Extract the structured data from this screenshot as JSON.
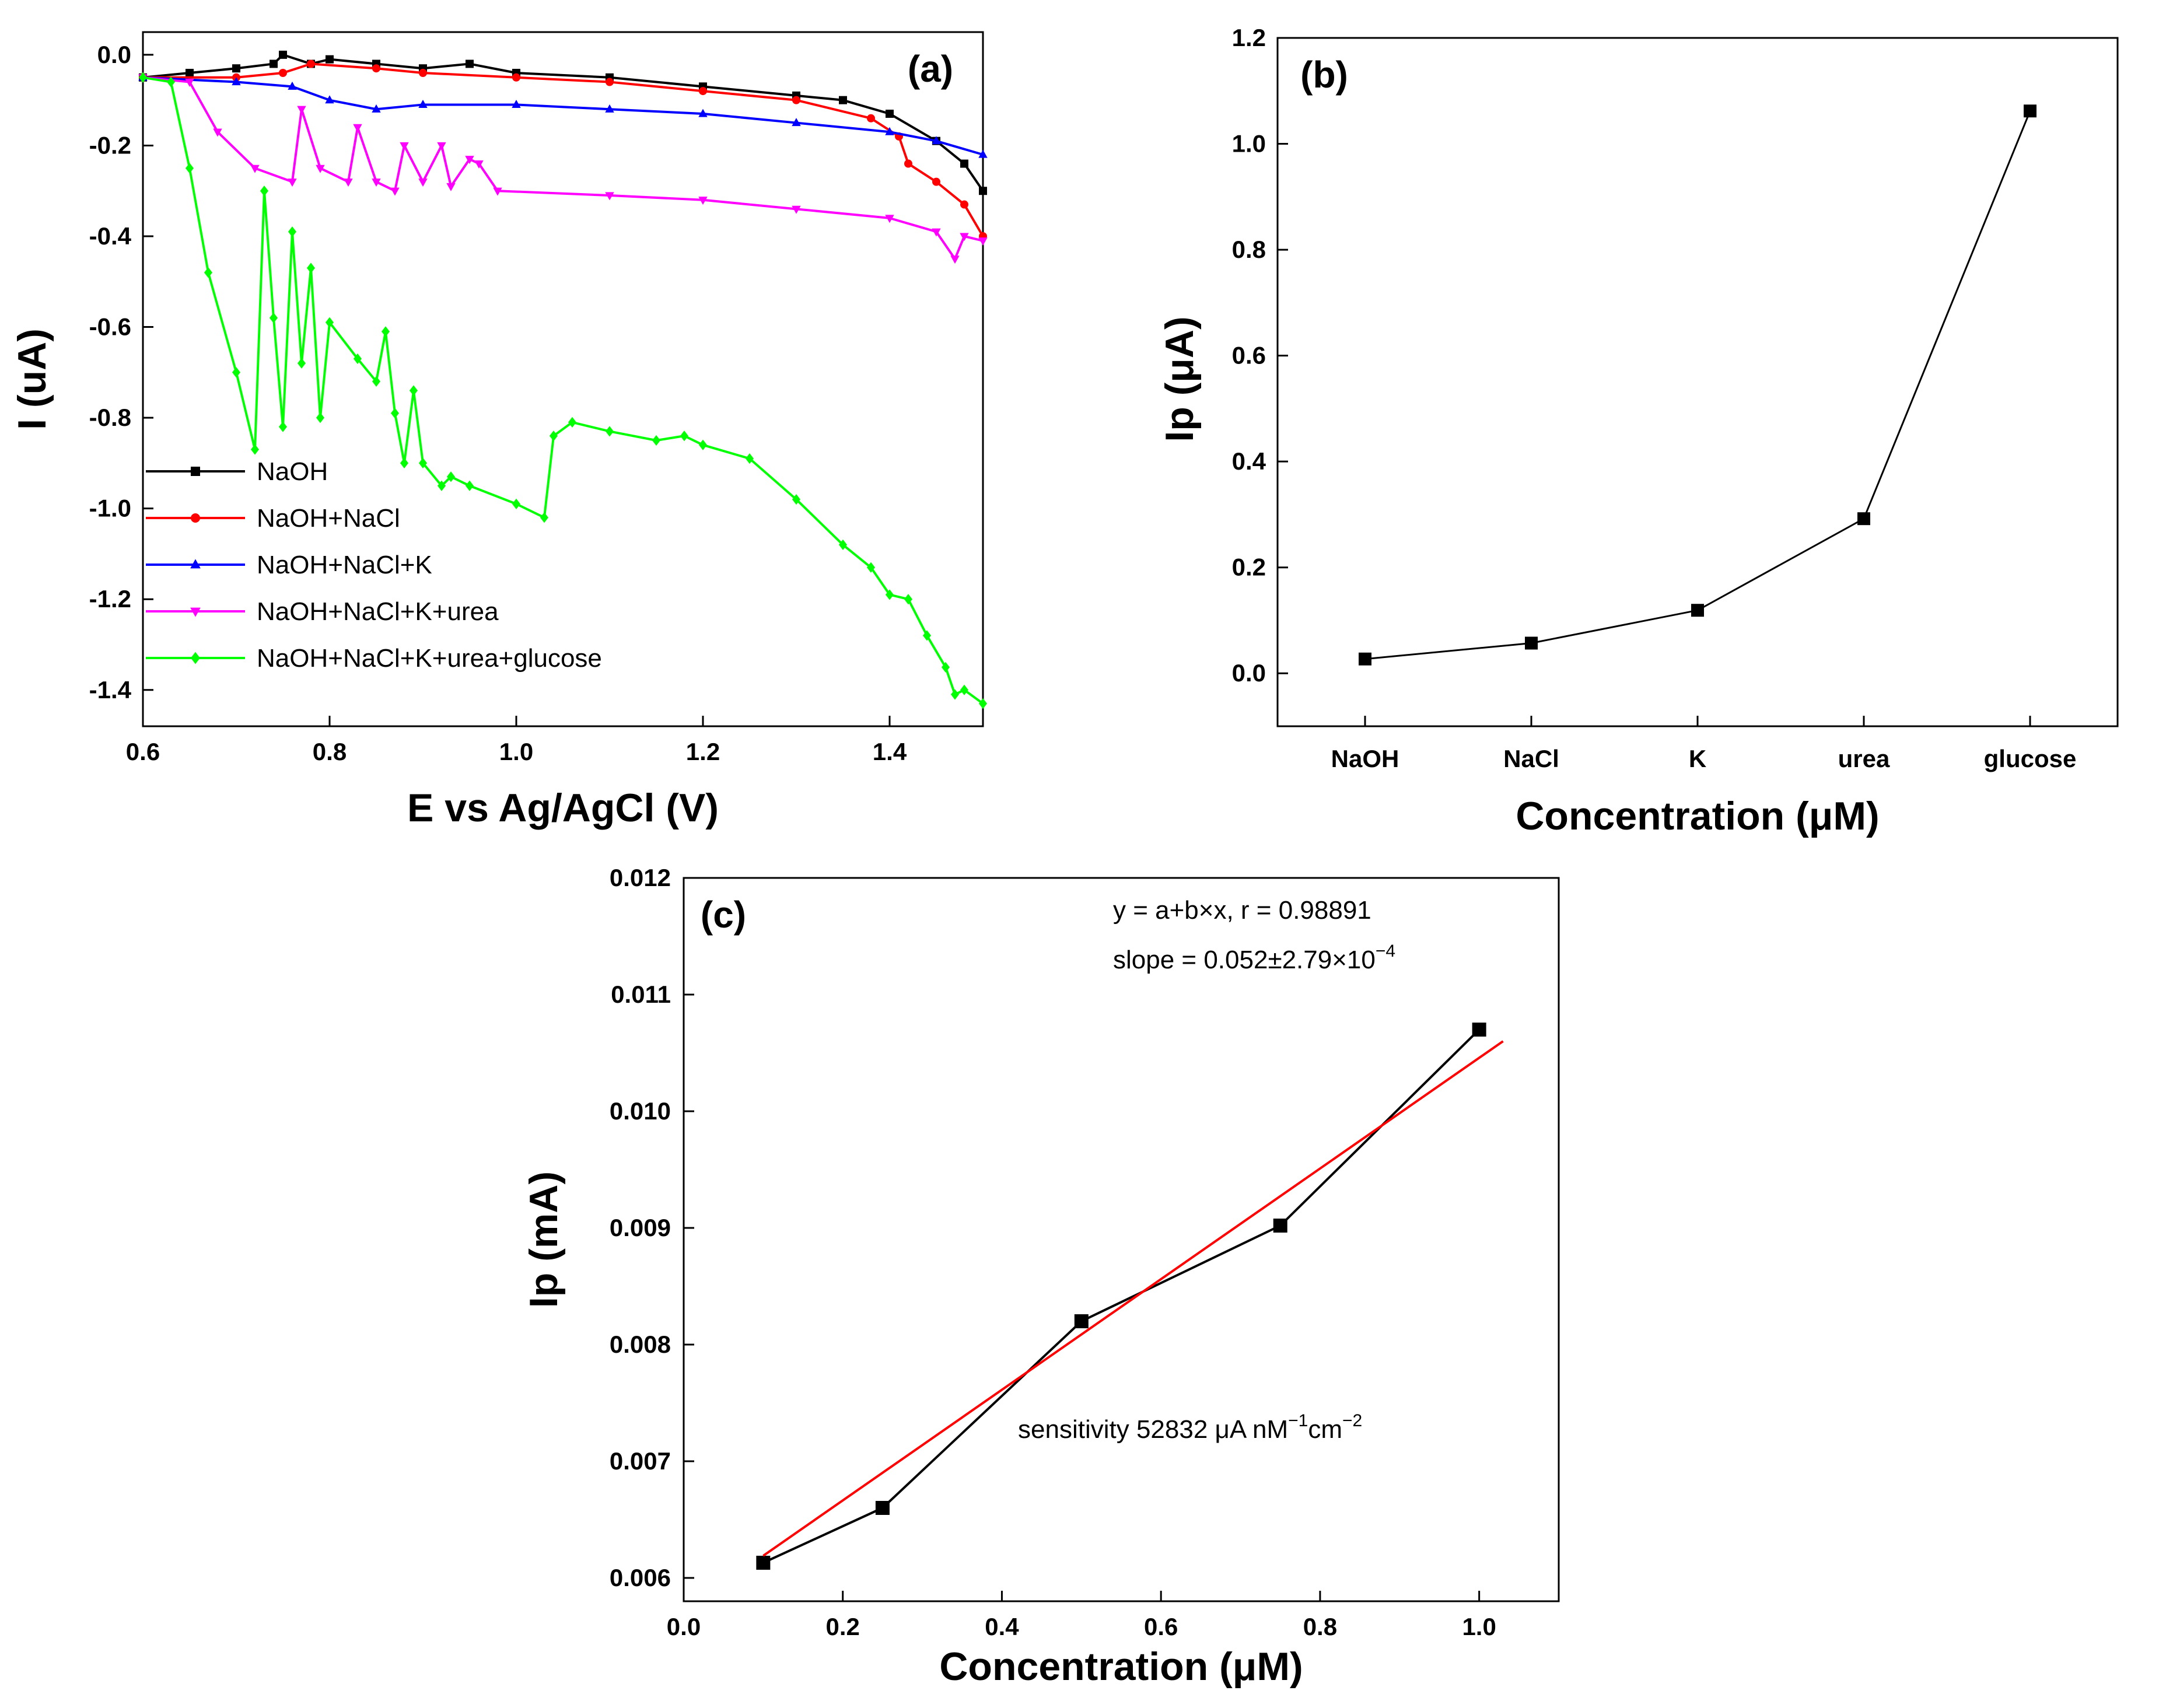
{
  "chart_data": [
    {
      "type": "line",
      "panel_label": "(a)",
      "title": "",
      "xlabel": "E vs Ag/AgCl (V)",
      "ylabel": "I (uA)",
      "xlim": [
        0.6,
        1.5
      ],
      "ylim": [
        -1.48,
        0.05
      ],
      "xticks": [
        "0.6",
        "0.8",
        "1.0",
        "1.2",
        "1.4"
      ],
      "yticks": [
        "0.0",
        "-0.2",
        "-0.4",
        "-0.6",
        "-0.8",
        "-1.0",
        "-1.2",
        "-1.4"
      ],
      "legend_position": "bottom-left",
      "series": [
        {
          "name": "NaOH",
          "color": "#000000",
          "marker": "square",
          "points": [
            [
              0.6,
              -0.05
            ],
            [
              0.65,
              -0.04
            ],
            [
              0.7,
              -0.03
            ],
            [
              0.74,
              -0.02
            ],
            [
              0.75,
              0.0
            ],
            [
              0.78,
              -0.02
            ],
            [
              0.8,
              -0.01
            ],
            [
              0.85,
              -0.02
            ],
            [
              0.9,
              -0.03
            ],
            [
              0.95,
              -0.02
            ],
            [
              1.0,
              -0.04
            ],
            [
              1.1,
              -0.05
            ],
            [
              1.2,
              -0.07
            ],
            [
              1.3,
              -0.09
            ],
            [
              1.35,
              -0.1
            ],
            [
              1.4,
              -0.13
            ],
            [
              1.45,
              -0.19
            ],
            [
              1.48,
              -0.24
            ],
            [
              1.5,
              -0.3
            ]
          ]
        },
        {
          "name": "NaOH+NaCl",
          "color": "#ff0000",
          "marker": "circle",
          "points": [
            [
              0.6,
              -0.05
            ],
            [
              0.7,
              -0.05
            ],
            [
              0.75,
              -0.04
            ],
            [
              0.78,
              -0.02
            ],
            [
              0.85,
              -0.03
            ],
            [
              0.9,
              -0.04
            ],
            [
              1.0,
              -0.05
            ],
            [
              1.1,
              -0.06
            ],
            [
              1.2,
              -0.08
            ],
            [
              1.3,
              -0.1
            ],
            [
              1.38,
              -0.14
            ],
            [
              1.41,
              -0.18
            ],
            [
              1.42,
              -0.24
            ],
            [
              1.45,
              -0.28
            ],
            [
              1.48,
              -0.33
            ],
            [
              1.5,
              -0.4
            ]
          ]
        },
        {
          "name": "NaOH+NaCl+K",
          "color": "#0000ff",
          "marker": "triangle-up",
          "points": [
            [
              0.6,
              -0.05
            ],
            [
              0.7,
              -0.06
            ],
            [
              0.76,
              -0.07
            ],
            [
              0.8,
              -0.1
            ],
            [
              0.85,
              -0.12
            ],
            [
              0.9,
              -0.11
            ],
            [
              1.0,
              -0.11
            ],
            [
              1.1,
              -0.12
            ],
            [
              1.2,
              -0.13
            ],
            [
              1.3,
              -0.15
            ],
            [
              1.4,
              -0.17
            ],
            [
              1.45,
              -0.19
            ],
            [
              1.5,
              -0.22
            ]
          ]
        },
        {
          "name": "NaOH+NaCl+K+urea",
          "color": "#ff00ff",
          "marker": "triangle-down",
          "points": [
            [
              0.6,
              -0.05
            ],
            [
              0.65,
              -0.06
            ],
            [
              0.68,
              -0.17
            ],
            [
              0.72,
              -0.25
            ],
            [
              0.76,
              -0.28
            ],
            [
              0.77,
              -0.12
            ],
            [
              0.79,
              -0.25
            ],
            [
              0.82,
              -0.28
            ],
            [
              0.83,
              -0.16
            ],
            [
              0.85,
              -0.28
            ],
            [
              0.87,
              -0.3
            ],
            [
              0.88,
              -0.2
            ],
            [
              0.9,
              -0.28
            ],
            [
              0.92,
              -0.2
            ],
            [
              0.93,
              -0.29
            ],
            [
              0.95,
              -0.23
            ],
            [
              0.96,
              -0.24
            ],
            [
              0.98,
              -0.3
            ],
            [
              1.1,
              -0.31
            ],
            [
              1.2,
              -0.32
            ],
            [
              1.3,
              -0.34
            ],
            [
              1.4,
              -0.36
            ],
            [
              1.45,
              -0.39
            ],
            [
              1.47,
              -0.45
            ],
            [
              1.48,
              -0.4
            ],
            [
              1.5,
              -0.41
            ]
          ]
        },
        {
          "name": "NaOH+NaCl+K+urea+glucose",
          "color": "#00ff00",
          "marker": "diamond",
          "points": [
            [
              0.6,
              -0.05
            ],
            [
              0.63,
              -0.06
            ],
            [
              0.65,
              -0.25
            ],
            [
              0.67,
              -0.48
            ],
            [
              0.7,
              -0.7
            ],
            [
              0.72,
              -0.87
            ],
            [
              0.73,
              -0.3
            ],
            [
              0.74,
              -0.58
            ],
            [
              0.75,
              -0.82
            ],
            [
              0.76,
              -0.39
            ],
            [
              0.77,
              -0.68
            ],
            [
              0.78,
              -0.47
            ],
            [
              0.79,
              -0.8
            ],
            [
              0.8,
              -0.59
            ],
            [
              0.83,
              -0.67
            ],
            [
              0.85,
              -0.72
            ],
            [
              0.86,
              -0.61
            ],
            [
              0.87,
              -0.79
            ],
            [
              0.88,
              -0.9
            ],
            [
              0.89,
              -0.74
            ],
            [
              0.9,
              -0.9
            ],
            [
              0.92,
              -0.95
            ],
            [
              0.93,
              -0.93
            ],
            [
              0.95,
              -0.95
            ],
            [
              1.0,
              -0.99
            ],
            [
              1.03,
              -1.02
            ],
            [
              1.04,
              -0.84
            ],
            [
              1.06,
              -0.81
            ],
            [
              1.1,
              -0.83
            ],
            [
              1.15,
              -0.85
            ],
            [
              1.18,
              -0.84
            ],
            [
              1.2,
              -0.86
            ],
            [
              1.25,
              -0.89
            ],
            [
              1.3,
              -0.98
            ],
            [
              1.35,
              -1.08
            ],
            [
              1.38,
              -1.13
            ],
            [
              1.4,
              -1.19
            ],
            [
              1.42,
              -1.2
            ],
            [
              1.44,
              -1.28
            ],
            [
              1.46,
              -1.35
            ],
            [
              1.47,
              -1.41
            ],
            [
              1.48,
              -1.4
            ],
            [
              1.5,
              -1.43
            ]
          ]
        }
      ]
    },
    {
      "type": "line",
      "panel_label": "(b)",
      "title": "",
      "xlabel": "Concentration (μM)",
      "ylabel": "Ip (μA)",
      "ylim": [
        -0.1,
        1.2
      ],
      "yticks": [
        "0.0",
        "0.2",
        "0.4",
        "0.6",
        "0.8",
        "1.0",
        "1.2"
      ],
      "categories": [
        "NaOH",
        "NaCl",
        "K",
        "urea",
        "glucose"
      ],
      "series": [
        {
          "name": "Ip",
          "color": "#000000",
          "marker": "square",
          "values": [
            0.027,
            0.057,
            0.119,
            0.292,
            1.062
          ]
        }
      ]
    },
    {
      "type": "scatter",
      "panel_label": "(c)",
      "title": "",
      "xlabel": "Concentration (μM)",
      "ylabel": "Ip (mA)",
      "xlim": [
        0.0,
        1.1
      ],
      "ylim": [
        0.0058,
        0.012
      ],
      "xticks": [
        "0.0",
        "0.2",
        "0.4",
        "0.6",
        "0.8",
        "1.0"
      ],
      "yticks": [
        "0.006",
        "0.007",
        "0.008",
        "0.009",
        "0.010",
        "0.011",
        "0.012"
      ],
      "series": [
        {
          "name": "data",
          "color": "#000000",
          "marker": "square",
          "points": [
            [
              0.1,
              0.00613
            ],
            [
              0.25,
              0.0066
            ],
            [
              0.5,
              0.0082
            ],
            [
              0.75,
              0.00902
            ],
            [
              1.0,
              0.0107
            ]
          ]
        },
        {
          "name": "linear fit",
          "color": "#ff0000",
          "marker": "none",
          "points": [
            [
              0.1,
              0.00619
            ],
            [
              1.03,
              0.0106
            ]
          ]
        }
      ],
      "annotations": {
        "fit_eq": "y = a+b×x, r = 0.98891",
        "slope_text": "slope = 0.052±2.79×10",
        "slope_exp": "−4",
        "sens_text": "sensitivity  52832 μA nM",
        "sens_exp1": "−1",
        "sens_unit2": "cm",
        "sens_exp2": "−2"
      }
    }
  ]
}
